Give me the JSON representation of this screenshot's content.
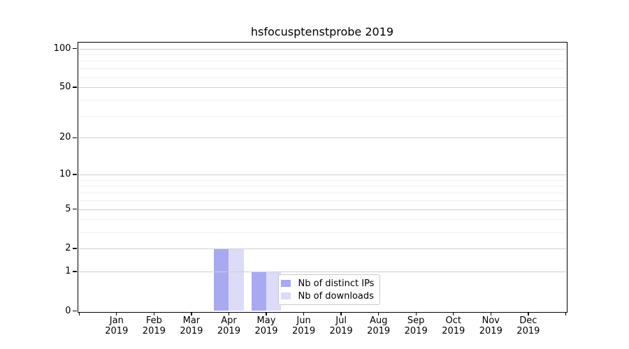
{
  "chart_data": {
    "type": "bar",
    "title": "hsfocusptenstprobe 2019",
    "x_tick_labels_line1": [
      "Jan",
      "Feb",
      "Mar",
      "Apr",
      "May",
      "Jun",
      "Jul",
      "Aug",
      "Sep",
      "Oct",
      "Nov",
      "Dec"
    ],
    "x_tick_labels_line2": [
      "2019",
      "2019",
      "2019",
      "2019",
      "2019",
      "2019",
      "2019",
      "2019",
      "2019",
      "2019",
      "2019",
      "2019"
    ],
    "series": [
      {
        "name": "Nb of distinct IPs",
        "color": "#a9a9f2",
        "values": [
          0,
          0,
          0,
          2,
          1,
          0,
          0,
          0,
          0,
          0,
          0,
          0
        ]
      },
      {
        "name": "Nb of downloads",
        "color": "#dcdcf8",
        "values": [
          0,
          0,
          0,
          2,
          1,
          0,
          0,
          0,
          0,
          0,
          0,
          0
        ]
      }
    ],
    "y_scale": "log10(1+y)",
    "y_major_ticks": [
      0,
      1,
      2,
      5,
      10,
      20,
      50,
      100
    ],
    "y_minor_gridlines": [
      3,
      4,
      6,
      7,
      8,
      9,
      30,
      40,
      60,
      70,
      80,
      90
    ],
    "ylim": [
      0,
      110
    ],
    "grid": true,
    "legend": {
      "items": [
        "Nb of distinct IPs",
        "Nb of downloads"
      ],
      "position": "lower center"
    }
  }
}
